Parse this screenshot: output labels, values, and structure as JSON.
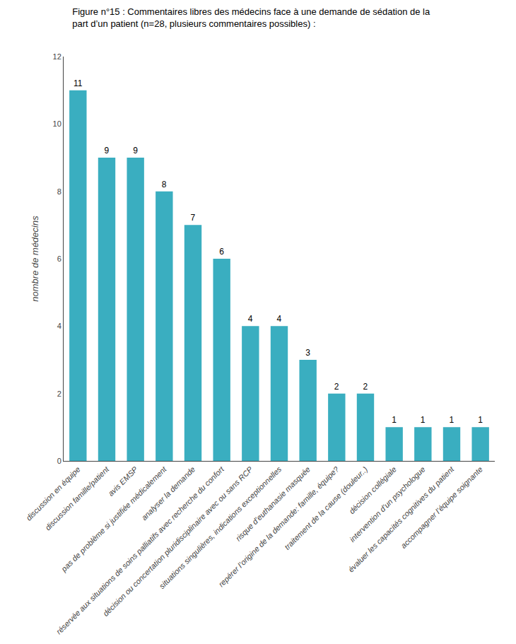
{
  "chart_data": {
    "type": "bar",
    "title": "Figure n°15 : Commentaires libres des médecins face à une demande de sédation de la",
    "subtitle": "part d’un patient (n=28, plusieurs commentaires possibles) :",
    "categories": [
      "discussion en équipe",
      "discussion famille/patient",
      "avis EMSP",
      "pas de problème si justifiée médicalement",
      "analyser la demande",
      "réservée aux situations de soins palliatifs avec recherche du confort",
      "décision ou concertation pluridisciplinaire avec ou sans RCP",
      "situations singulières, indications exceptionnelles",
      "risque d’euthanasie masquée",
      "repérer l’origine de la demande: famille, équipe?",
      "traitement de la cause (douleur..)",
      "décision collégiale",
      "intervention d’un psychologue",
      "évaluer les capacités cognitives du patient",
      "accompagner l’équipe soignante"
    ],
    "values": [
      11,
      9,
      9,
      8,
      7,
      6,
      4,
      4,
      3,
      2,
      2,
      1,
      1,
      1,
      1
    ],
    "color": "#3aaec0",
    "ylabel": "nombre de médecins",
    "ylim": [
      0,
      12
    ],
    "yticks": [
      0,
      2,
      4,
      6,
      8,
      10,
      12
    ],
    "grid": false,
    "data_labels": true
  }
}
